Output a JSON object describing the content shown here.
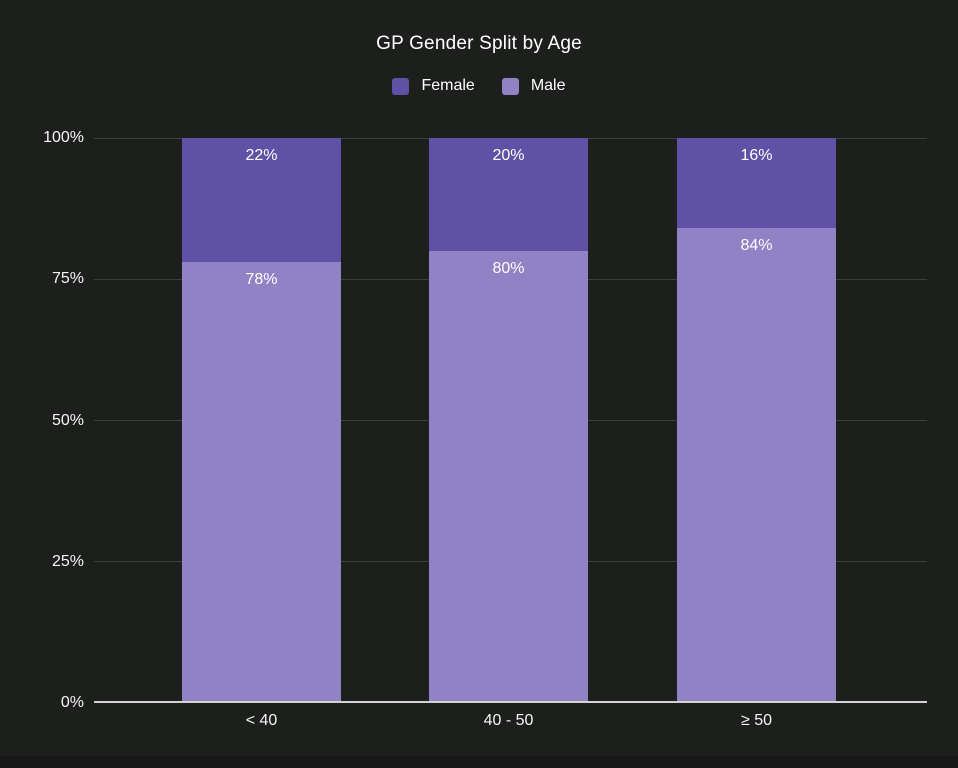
{
  "chart_data": {
    "type": "bar",
    "subtype": "stacked-percent",
    "title": "GP Gender Split by Age",
    "categories": [
      "< 40",
      "40 - 50",
      "≥ 50"
    ],
    "series": [
      {
        "name": "Female",
        "color": "#5f51a5",
        "values": [
          22,
          20,
          16
        ],
        "labels": [
          "22%",
          "20%",
          "16%"
        ]
      },
      {
        "name": "Male",
        "color": "#9082c4",
        "values": [
          78,
          80,
          84
        ],
        "labels": [
          "78%",
          "80%",
          "84%"
        ]
      }
    ],
    "y_ticks": [
      "0%",
      "25%",
      "50%",
      "75%",
      "100%"
    ],
    "ylim": [
      0,
      100
    ],
    "legend_position": "top",
    "grid": true
  },
  "colors": {
    "background": "#1d1f1d",
    "text": "#ffffff",
    "gridline": "#3d3f3d",
    "baseline": "#d3d3d3",
    "female": "#5f51a5",
    "male": "#9082c4"
  }
}
